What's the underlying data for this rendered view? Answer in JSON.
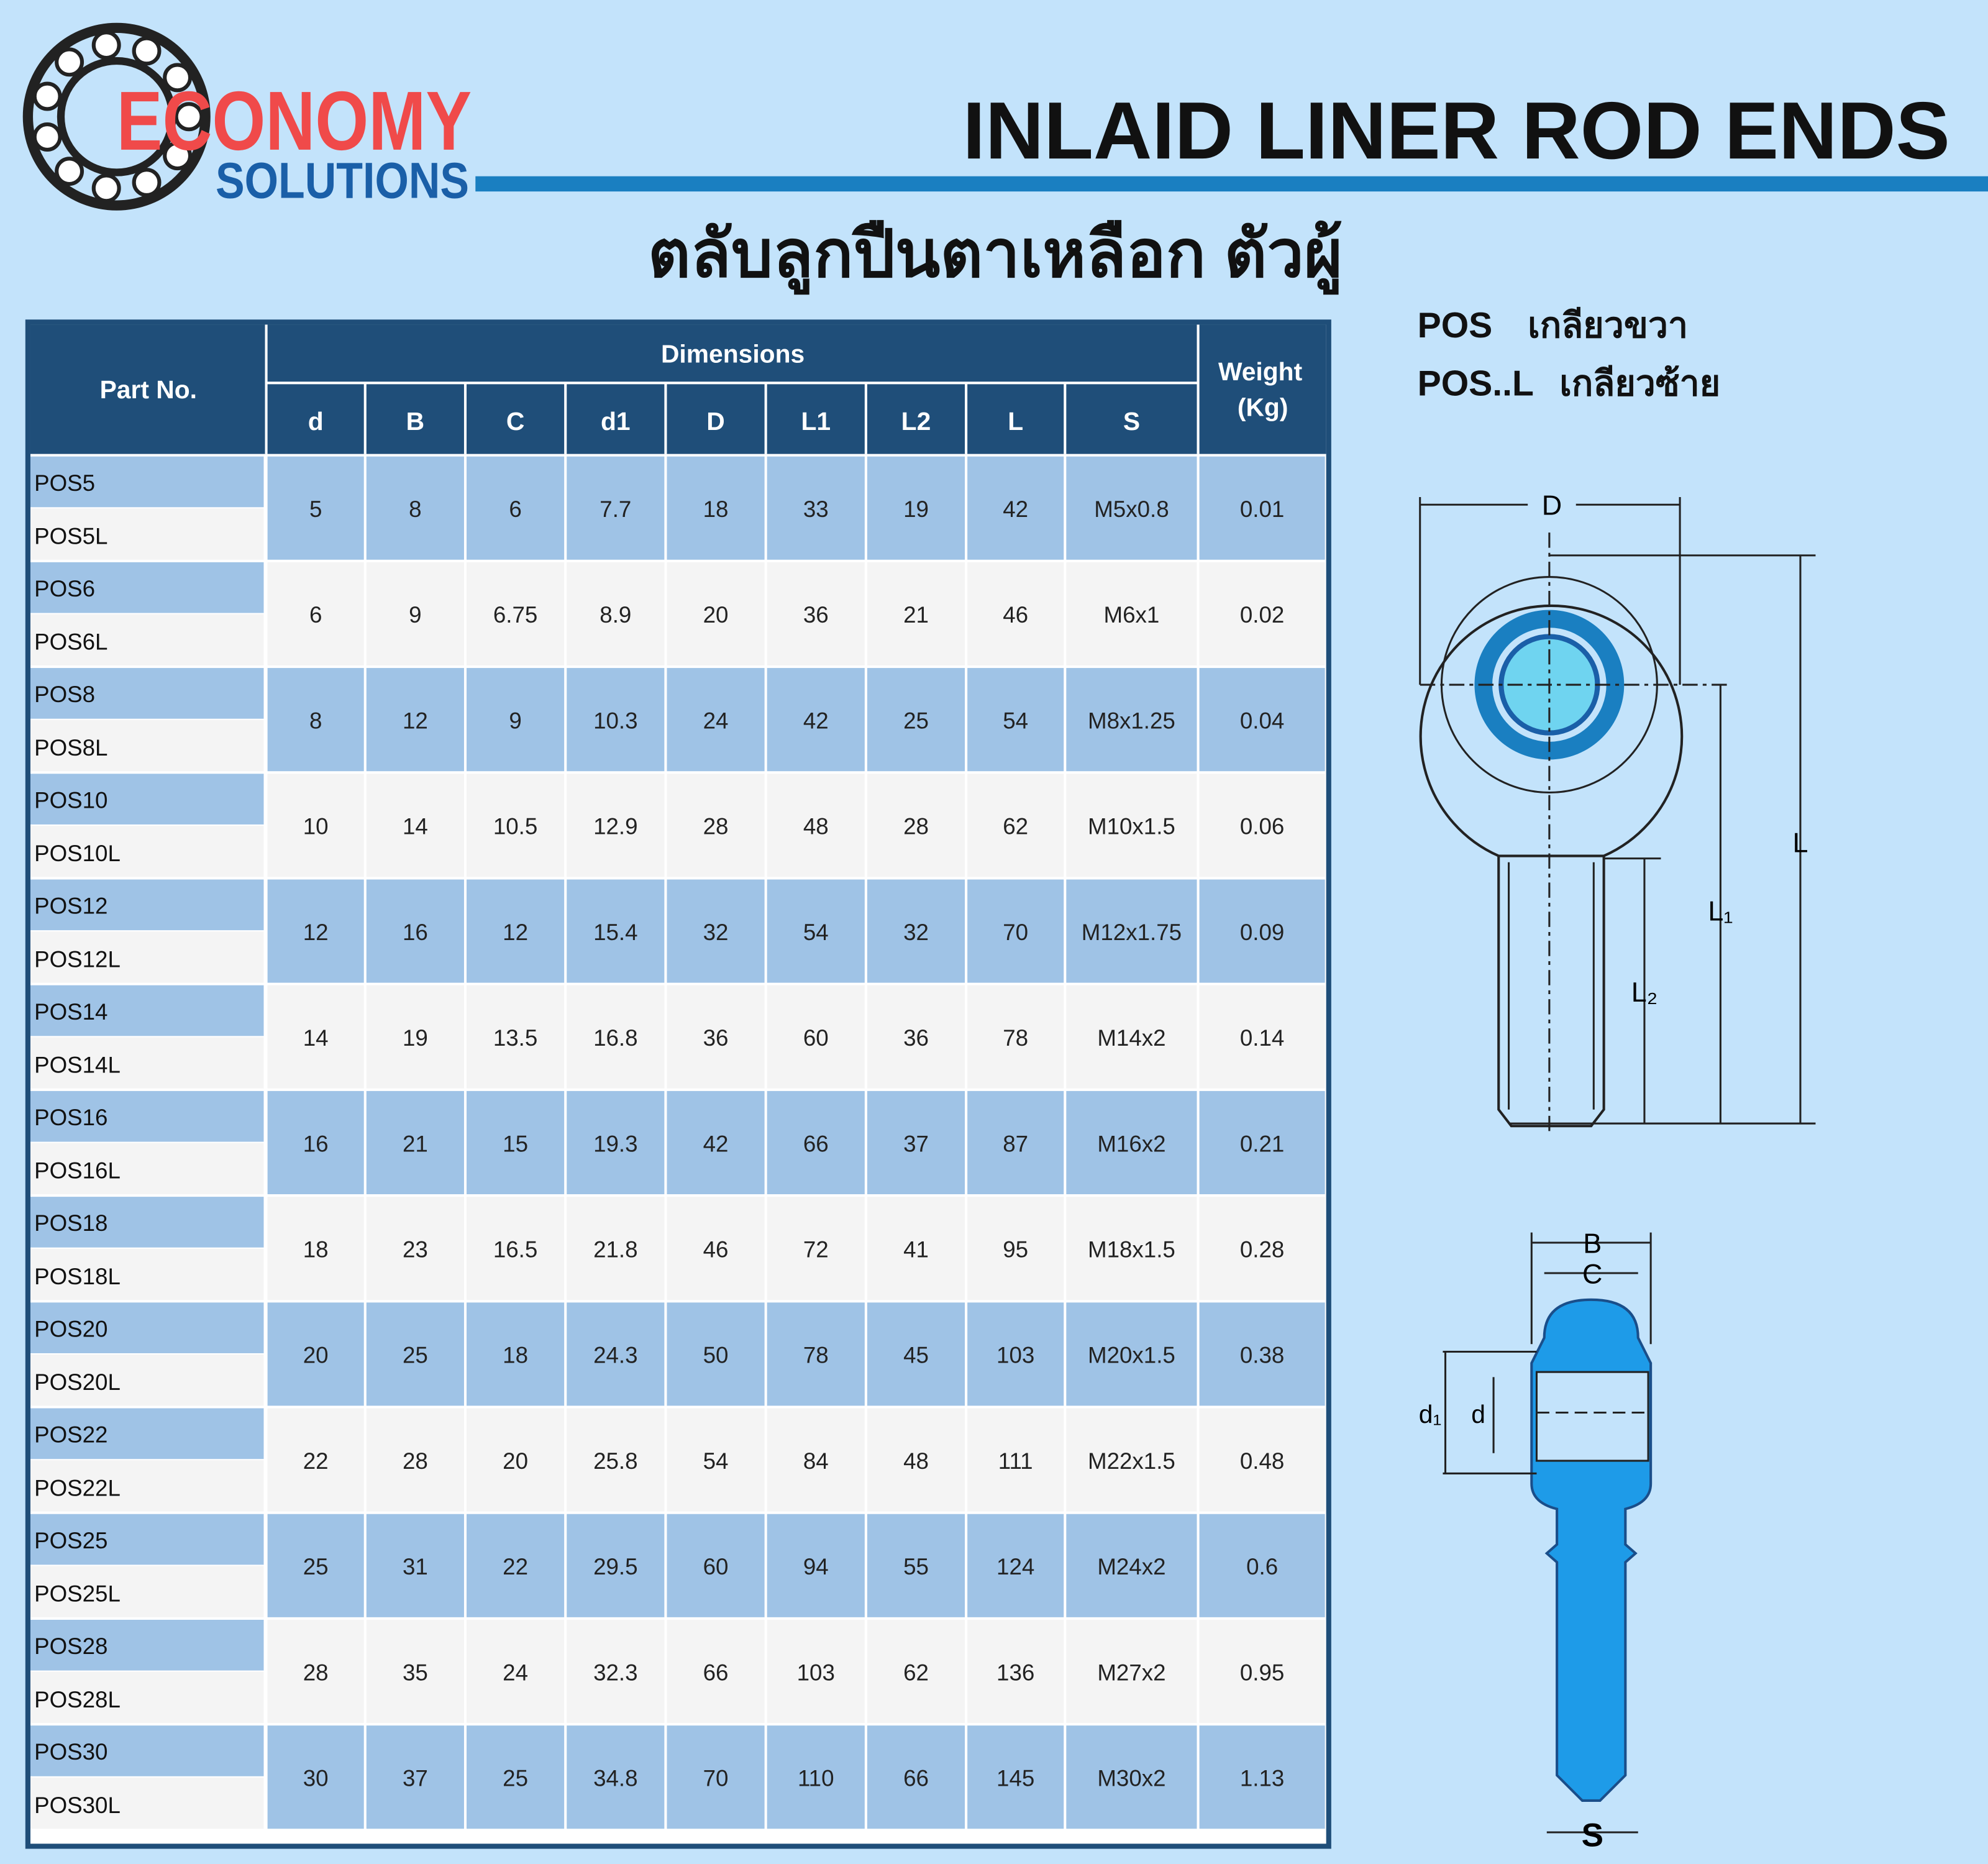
{
  "header": {
    "brand": [
      "ECONOMY",
      "SOLUTIONS"
    ],
    "title": "INLAID LINER ROD ENDS",
    "subtitle": "ตลับลูกปืนตาเหลือก ตัวผู้"
  },
  "table": {
    "part_header": "Part No.",
    "group_header": "Dimensions",
    "weight_header": [
      "Weight",
      "(Kg)"
    ],
    "columns": [
      "d",
      "B",
      "C",
      "d1",
      "D",
      "L1",
      "L2",
      "L",
      "S"
    ],
    "rows": [
      {
        "parts": [
          "POS5",
          "POS5L"
        ],
        "cells": [
          5,
          8,
          6,
          7.7,
          18,
          33,
          19,
          42,
          "M5x0.8",
          0.01
        ]
      },
      {
        "parts": [
          "POS6",
          "POS6L"
        ],
        "cells": [
          6,
          9,
          6.75,
          8.9,
          20,
          36,
          21,
          46,
          "M6x1",
          0.02
        ]
      },
      {
        "parts": [
          "POS8",
          "POS8L"
        ],
        "cells": [
          8,
          12,
          9,
          10.3,
          24,
          42,
          25,
          54,
          "M8x1.25",
          0.04
        ]
      },
      {
        "parts": [
          "POS10",
          "POS10L"
        ],
        "cells": [
          10,
          14,
          10.5,
          12.9,
          28,
          48,
          28,
          62,
          "M10x1.5",
          0.06
        ]
      },
      {
        "parts": [
          "POS12",
          "POS12L"
        ],
        "cells": [
          12,
          16,
          12,
          15.4,
          32,
          54,
          32,
          70,
          "M12x1.75",
          0.09
        ]
      },
      {
        "parts": [
          "POS14",
          "POS14L"
        ],
        "cells": [
          14,
          19,
          13.5,
          16.8,
          36,
          60,
          36,
          78,
          "M14x2",
          0.14
        ]
      },
      {
        "parts": [
          "POS16",
          "POS16L"
        ],
        "cells": [
          16,
          21,
          15,
          19.3,
          42,
          66,
          37,
          87,
          "M16x2",
          0.21
        ]
      },
      {
        "parts": [
          "POS18",
          "POS18L"
        ],
        "cells": [
          18,
          23,
          16.5,
          21.8,
          46,
          72,
          41,
          95,
          "M18x1.5",
          0.28
        ]
      },
      {
        "parts": [
          "POS20",
          "POS20L"
        ],
        "cells": [
          20,
          25,
          18,
          24.3,
          50,
          78,
          45,
          103,
          "M20x1.5",
          0.38
        ]
      },
      {
        "parts": [
          "POS22",
          "POS22L"
        ],
        "cells": [
          22,
          28,
          20,
          25.8,
          54,
          84,
          48,
          111,
          "M22x1.5",
          0.48
        ]
      },
      {
        "parts": [
          "POS25",
          "POS25L"
        ],
        "cells": [
          25,
          31,
          22,
          29.5,
          60,
          94,
          55,
          124,
          "M24x2",
          0.6
        ]
      },
      {
        "parts": [
          "POS28",
          "POS28L"
        ],
        "cells": [
          28,
          35,
          24,
          32.3,
          66,
          103,
          62,
          136,
          "M27x2",
          0.95
        ]
      },
      {
        "parts": [
          "POS30",
          "POS30L"
        ],
        "cells": [
          30,
          37,
          25,
          34.8,
          70,
          110,
          66,
          145,
          "M30x2",
          1.13
        ]
      }
    ]
  },
  "legend": [
    {
      "code": "POS",
      "text": "เกลียวขวา"
    },
    {
      "code": "POS..L",
      "text": "เกลียวซ้าย"
    }
  ],
  "diagram": {
    "D": "D",
    "L": "L",
    "L1": "L₁",
    "L2": "L₂",
    "B": "B",
    "C": "C",
    "d1": "d₁",
    "d": "d",
    "S": "S"
  }
}
